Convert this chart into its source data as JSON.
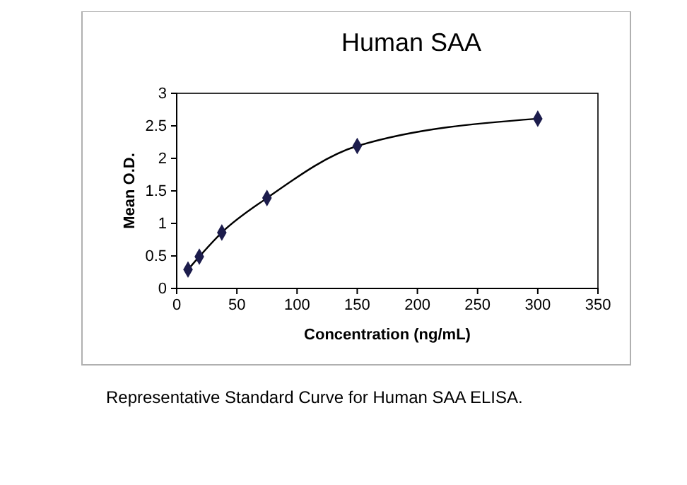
{
  "chart_data": {
    "type": "line",
    "title": "Human SAA",
    "xlabel": "Concentration (ng/mL)",
    "ylabel": "Mean O.D.",
    "x": [
      9.4,
      18.8,
      37.5,
      75,
      150,
      300
    ],
    "series": [
      {
        "color": "#1c1c4c",
        "values": [
          0.29,
          0.49,
          0.86,
          1.39,
          2.19,
          2.61
        ]
      }
    ],
    "xlim": [
      0,
      350
    ],
    "xticks": [
      0,
      50,
      100,
      150,
      200,
      250,
      300,
      350
    ],
    "ylim": [
      0,
      3
    ],
    "yticks": [
      0,
      0.5,
      1,
      1.5,
      2,
      2.5,
      3
    ],
    "marker": "diamond",
    "line_style": "solid",
    "grid": false,
    "annotations": [
      "Representative Standard Curve for Human SAA ELISA."
    ]
  }
}
